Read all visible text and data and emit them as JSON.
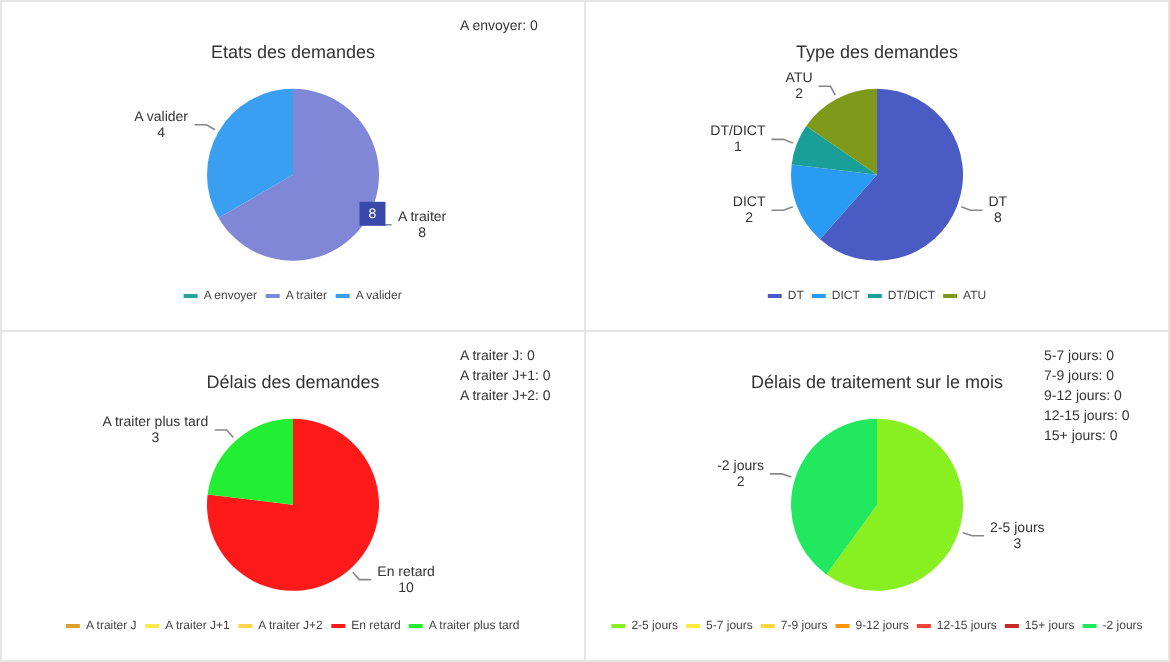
{
  "chart_data": [
    {
      "type": "pie",
      "title": "Etats des demandes",
      "categories": [
        "A envoyer",
        "A traiter",
        "A valider"
      ],
      "values": [
        0,
        8,
        4
      ],
      "colors": [
        "#26a69a",
        "#7f87d6",
        "#3a9ff0"
      ],
      "data_labels": true,
      "legend": "bottom",
      "annotations": [
        "A envoyer: 0",
        {
          "text": "8",
          "x": "A traiter"
        }
      ]
    },
    {
      "type": "pie",
      "title": "Type des demandes",
      "categories": [
        "DT",
        "DICT",
        "DT/DICT",
        "ATU"
      ],
      "values": [
        8,
        2,
        1,
        2
      ],
      "colors": [
        "#4a5bc4",
        "#2a9bf2",
        "#1a9f98",
        "#7f9a1a"
      ],
      "data_labels": true,
      "legend": "bottom"
    },
    {
      "type": "pie",
      "title": "Délais des demandes",
      "categories": [
        "A traiter J",
        "A traiter J+1",
        "A traiter J+2",
        "En retard",
        "A traiter plus tard"
      ],
      "values": [
        0,
        0,
        0,
        10,
        3
      ],
      "colors": [
        "#e0a030",
        "#ffe84a",
        "#ffd54f",
        "#ff1a1a",
        "#22ee33"
      ],
      "data_labels": true,
      "legend": "bottom",
      "annotations": [
        "A traiter J: 0",
        "A traiter J+1: 0",
        "A traiter J+2: 0"
      ]
    },
    {
      "type": "pie",
      "title": "Délais de traitement sur le mois",
      "categories": [
        "2-5 jours",
        "5-7 jours",
        "7-9 jours",
        "9-12 jours",
        "12-15 jours",
        "15+ jours",
        "-2 jours"
      ],
      "values": [
        3,
        0,
        0,
        0,
        0,
        0,
        2
      ],
      "colors": [
        "#88f020",
        "#ffeb3b",
        "#ffd740",
        "#ff9800",
        "#f44336",
        "#c62828",
        "#22e860"
      ],
      "data_labels": true,
      "legend": "bottom",
      "annotations": [
        "5-7 jours: 0",
        "7-9 jours: 0",
        "9-12 jours: 0",
        "12-15 jours: 0",
        "15+ jours: 0"
      ]
    }
  ]
}
